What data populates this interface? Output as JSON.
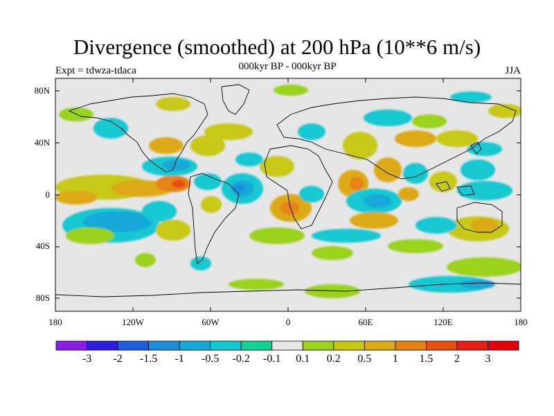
{
  "title": "Divergence (smoothed) at 200 hPa (10**6 m/s)",
  "subtitle": "000kyr BP - 000kyr BP",
  "experiment": "Expt = tdwza-tdaca",
  "season": "JJA",
  "axes": {
    "lat_ticks": [
      "80N",
      "40N",
      "0",
      "40S",
      "80S"
    ],
    "lon_ticks": [
      "180",
      "120W",
      "60W",
      "0",
      "60E",
      "120E",
      "180"
    ]
  },
  "colorbar": {
    "labels": [
      "-3",
      "-2",
      "-1.5",
      "-1",
      "-0.5",
      "-0.2",
      "-0.1",
      "0.1",
      "0.2",
      "0.5",
      "1",
      "1.5",
      "2",
      "3"
    ],
    "colors": [
      "#8c1ee6",
      "#2d1ee0",
      "#1e5fdc",
      "#1e8cdc",
      "#14a8d8",
      "#14c8d2",
      "#14d296",
      "#e6e6e6",
      "#9ad21e",
      "#c8c814",
      "#dcaa14",
      "#e68214",
      "#e6500f",
      "#e61e14",
      "#e6000a"
    ]
  },
  "map": {
    "background": "#e6e6e6",
    "lon_range": [
      -180,
      180
    ],
    "lat_range": [
      -90,
      90
    ]
  }
}
